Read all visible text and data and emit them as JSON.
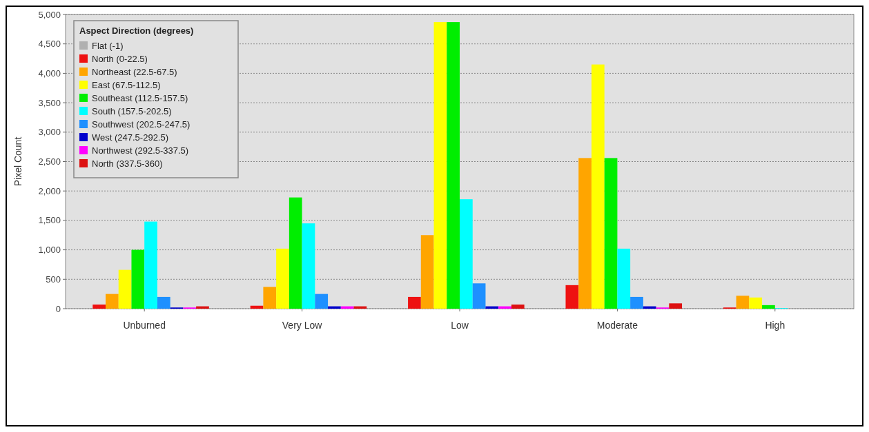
{
  "chart_data": {
    "type": "bar",
    "ylabel": "Pixel Count",
    "legend_title": "Aspect Direction (degrees)",
    "categories": [
      "Unburned",
      "Very Low",
      "Low",
      "Moderate",
      "High"
    ],
    "series": [
      {
        "name": "Flat (-1)",
        "color": "#b0b0b0",
        "values": [
          0,
          0,
          0,
          0,
          0
        ]
      },
      {
        "name": "North (0-22.5)",
        "color": "#ee1111",
        "values": [
          70,
          50,
          200,
          400,
          20
        ]
      },
      {
        "name": "Northeast (22.5-67.5)",
        "color": "#ffa500",
        "values": [
          250,
          370,
          1250,
          2560,
          220
        ]
      },
      {
        "name": "East (67.5-112.5)",
        "color": "#ffff00",
        "values": [
          660,
          1020,
          4870,
          4150,
          190
        ]
      },
      {
        "name": "Southeast (112.5-157.5)",
        "color": "#00ee00",
        "values": [
          1000,
          1890,
          4870,
          2560,
          60
        ]
      },
      {
        "name": "South (157.5-202.5)",
        "color": "#00ffff",
        "values": [
          1480,
          1450,
          1860,
          1020,
          10
        ]
      },
      {
        "name": "Southwest (202.5-247.5)",
        "color": "#1e90ff",
        "values": [
          200,
          250,
          430,
          200,
          0
        ]
      },
      {
        "name": "West (247.5-292.5)",
        "color": "#0000cc",
        "values": [
          20,
          40,
          40,
          40,
          0
        ]
      },
      {
        "name": "Northwest (292.5-337.5)",
        "color": "#ff00ff",
        "values": [
          20,
          40,
          40,
          20,
          0
        ]
      },
      {
        "name": "North (337.5-360)",
        "color": "#dd1111",
        "values": [
          40,
          40,
          70,
          90,
          0
        ]
      }
    ],
    "ylim": [
      0,
      5000
    ],
    "yticks": [
      {
        "value": 0,
        "label": "0"
      },
      {
        "value": 500,
        "label": "500"
      },
      {
        "value": 1000,
        "label": "1,000"
      },
      {
        "value": 1500,
        "label": "1,500"
      },
      {
        "value": 2000,
        "label": "2,000"
      },
      {
        "value": 2500,
        "label": "2,500"
      },
      {
        "value": 3000,
        "label": "3,000"
      },
      {
        "value": 3500,
        "label": "3,500"
      },
      {
        "value": 4000,
        "label": "4,000"
      },
      {
        "value": 4500,
        "label": "4,500"
      },
      {
        "value": 5000,
        "label": "5,000"
      }
    ],
    "grid": "y",
    "legend": "top left"
  }
}
